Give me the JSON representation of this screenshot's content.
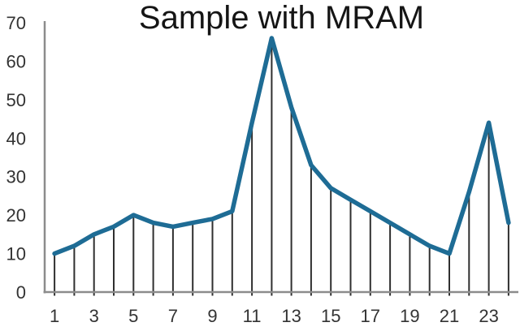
{
  "colors": {
    "line": "#1E6C95",
    "drop_line": "#2F2F2F",
    "axis": "#8C8C8C",
    "tick_text": "#333333",
    "title_text": "#151515",
    "background": "#FFFFFF"
  },
  "chart_data": {
    "type": "line",
    "title": "Sample with MRAM",
    "x": [
      1,
      2,
      3,
      4,
      5,
      6,
      7,
      8,
      9,
      10,
      11,
      12,
      13,
      14,
      15,
      16,
      17,
      18,
      19,
      20,
      21,
      22,
      23,
      24
    ],
    "values": [
      10,
      12,
      15,
      17,
      20,
      18,
      17,
      18,
      19,
      21,
      44,
      66,
      48,
      33,
      27,
      24,
      21,
      18,
      15,
      12,
      10,
      26,
      44,
      18
    ],
    "x_tick_labels": [
      "1",
      "3",
      "5",
      "7",
      "9",
      "11",
      "13",
      "15",
      "17",
      "19",
      "21",
      "23"
    ],
    "y_ticks": [
      0,
      10,
      20,
      30,
      40,
      50,
      60,
      70
    ],
    "ylim": [
      0,
      70
    ],
    "xlabel": "",
    "ylabel": "",
    "grid": false,
    "legend": false,
    "marker": "none",
    "drop_lines": true
  }
}
